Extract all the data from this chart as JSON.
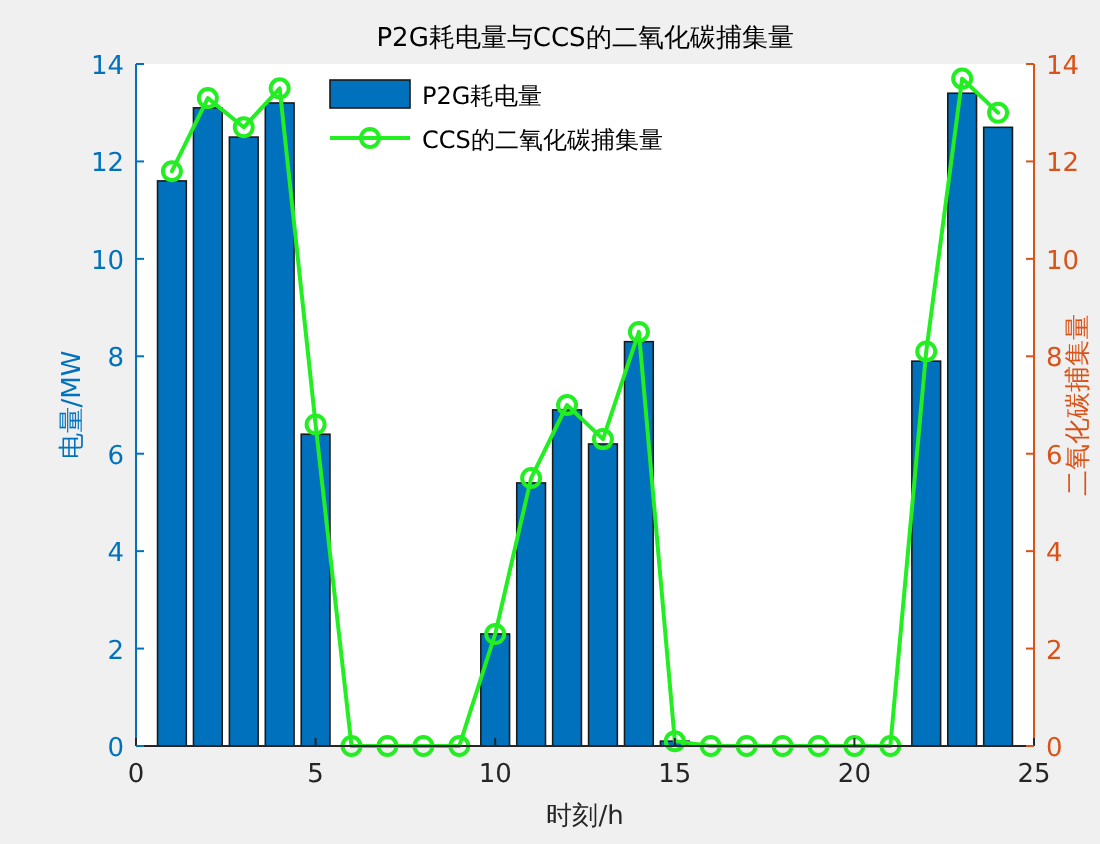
{
  "chart_data": {
    "type": "bar",
    "title": "P2G耗电量与CCS的二氧化碳捕集量",
    "xlabel": "时刻/h",
    "ylabel": "电量/MW",
    "y2label": "二氧化碳捕集量",
    "x": [
      1,
      2,
      3,
      4,
      5,
      6,
      7,
      8,
      9,
      10,
      11,
      12,
      13,
      14,
      15,
      16,
      17,
      18,
      19,
      20,
      21,
      22,
      23,
      24
    ],
    "series": [
      {
        "name": "P2G耗电量",
        "color": "#0072bd",
        "values": [
          11.6,
          13.1,
          12.5,
          13.2,
          6.4,
          0,
          0,
          0,
          0,
          2.3,
          5.4,
          6.9,
          6.2,
          8.3,
          0.1,
          0,
          0,
          0,
          0,
          0,
          0,
          7.9,
          13.4,
          12.7
        ]
      },
      {
        "name": "CCS的二氧化碳捕集量",
        "type": "line",
        "axis": "y2",
        "color": "#22ee22",
        "marker": "circle",
        "line_style": "solid",
        "values": [
          11.8,
          13.3,
          12.7,
          13.5,
          6.6,
          0,
          0,
          0,
          0,
          2.3,
          5.5,
          7.0,
          6.3,
          8.5,
          0.1,
          0,
          0,
          0,
          0,
          0,
          0,
          8.1,
          13.7,
          13.0
        ]
      }
    ],
    "xlim": [
      0,
      25
    ],
    "xticks": [
      0,
      5,
      10,
      15,
      20,
      25
    ],
    "ylim": [
      0,
      14
    ],
    "yticks": [
      0,
      2,
      4,
      6,
      8,
      10,
      12,
      14
    ],
    "y2lim": [
      0,
      14
    ],
    "y2ticks": [
      0,
      2,
      4,
      6,
      8,
      10,
      12,
      14
    ],
    "grid": false,
    "legend": "top"
  }
}
